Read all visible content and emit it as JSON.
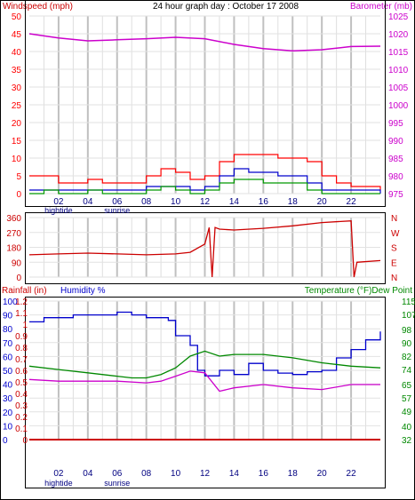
{
  "colors": {
    "wind_avg": "#ff0000",
    "wind_gust": "#0000cc",
    "wind_min": "#009900",
    "barometer": "#cc00cc",
    "direction": "#cc0000",
    "humidity": "#0000cc",
    "temperature": "#008800",
    "dew_point": "#cc00cc",
    "rainfall": "#cc0000",
    "frame": "#000000",
    "grid": "#c8c8c8"
  },
  "chart_data": [
    {
      "type": "line",
      "title": "24 hour graph day : October 17 2008",
      "left_axis_label": "Windspeed (mph)",
      "right_axis_label": "Barometer (mb)",
      "left_ticks": [
        "50",
        "45",
        "40",
        "35",
        "30",
        "25",
        "20",
        "15",
        "10",
        "5",
        "0"
      ],
      "right_ticks": [
        "1025",
        "1020",
        "1015",
        "1010",
        "1005",
        "1000",
        "995",
        "990",
        "985",
        "980",
        "975"
      ],
      "x_ticks": [
        "02",
        "04",
        "06",
        "08",
        "10",
        "12",
        "14",
        "16",
        "18",
        "20",
        "22"
      ],
      "x_sublabels": {
        "02": "hightide",
        "06": "sunrise"
      },
      "ylim_left": [
        0,
        50
      ],
      "ylim_right": [
        975,
        1025
      ],
      "grid": true,
      "series": [
        {
          "color_key": "barometer",
          "axis": "right",
          "x": [
            0,
            2,
            4,
            6,
            8,
            10,
            12,
            14,
            16,
            18,
            20,
            22,
            24
          ],
          "values": [
            1020,
            1018.8,
            1018,
            1018.3,
            1018.6,
            1019,
            1018.6,
            1017,
            1015.8,
            1015.2,
            1015.5,
            1016.4,
            1016.5
          ]
        },
        {
          "color_key": "wind_avg",
          "axis": "left",
          "x": [
            0,
            1,
            2,
            3,
            4,
            5,
            6,
            7,
            8,
            9,
            10,
            11,
            12,
            13,
            14,
            15,
            16,
            17,
            18,
            19,
            20,
            21,
            22,
            23,
            24
          ],
          "values": [
            5,
            5,
            3,
            3,
            4,
            3,
            3,
            3,
            5,
            7,
            6,
            4,
            5,
            9,
            11,
            11,
            11,
            10,
            10,
            9,
            5,
            3,
            2,
            2,
            1
          ]
        },
        {
          "color_key": "wind_gust",
          "axis": "left",
          "x": [
            0,
            1,
            2,
            3,
            4,
            5,
            6,
            7,
            8,
            9,
            10,
            11,
            12,
            13,
            14,
            15,
            16,
            17,
            18,
            19,
            20,
            21,
            22,
            23,
            24
          ],
          "values": [
            1,
            1,
            1,
            1,
            1,
            1,
            1,
            1,
            2,
            2,
            2,
            1,
            2,
            5,
            7,
            6,
            6,
            5,
            5,
            3,
            1,
            1,
            1,
            1,
            0
          ]
        },
        {
          "color_key": "wind_min",
          "axis": "left",
          "x": [
            0,
            1,
            2,
            3,
            4,
            5,
            6,
            7,
            8,
            9,
            10,
            11,
            12,
            13,
            14,
            15,
            16,
            17,
            18,
            19,
            20,
            21,
            22,
            23,
            24
          ],
          "values": [
            0,
            1,
            0,
            0,
            1,
            0,
            0,
            0,
            1,
            2,
            1,
            0,
            1,
            3,
            4,
            4,
            3,
            3,
            3,
            1,
            0,
            0,
            0,
            0,
            0
          ]
        }
      ]
    },
    {
      "type": "line",
      "left_ticks": [
        "360",
        "270",
        "180",
        "90",
        "0"
      ],
      "right_ticks": [
        "N",
        "W",
        "S",
        "E",
        "N"
      ],
      "ylim": [
        0,
        360
      ],
      "grid": true,
      "series": [
        {
          "color_key": "direction",
          "x": [
            0,
            2,
            4,
            6,
            8,
            10,
            11,
            12,
            12.3,
            12.5,
            12.7,
            13,
            14,
            16,
            18,
            20,
            22,
            22.2,
            22.4,
            24
          ],
          "values": [
            135,
            140,
            145,
            140,
            135,
            140,
            150,
            200,
            300,
            0,
            300,
            290,
            285,
            295,
            310,
            330,
            340,
            0,
            90,
            100
          ]
        }
      ]
    },
    {
      "type": "line",
      "left_axis_label_rain": "Rainfall (in)",
      "left_axis_label_humidity": "Humidity %",
      "right_axis_label": "Temperature (°F)Dew Point",
      "humidity_ticks": [
        "100",
        "90",
        "80",
        "70",
        "60",
        "50",
        "40",
        "30",
        "20",
        "10",
        "0"
      ],
      "rain_ticks": [
        "1.2",
        "1.1",
        "1",
        "0.9",
        "0.8",
        "0.7",
        "0.6",
        "0.5",
        "0.4",
        "0.3",
        "0.2",
        "0.1",
        "0"
      ],
      "temp_ticks": [
        "115",
        "107",
        "98",
        "90",
        "82",
        "74",
        "65",
        "57",
        "49",
        "40",
        "32"
      ],
      "x_ticks": [
        "02",
        "04",
        "06",
        "08",
        "10",
        "12",
        "14",
        "16",
        "18",
        "20",
        "22"
      ],
      "x_sublabels": {
        "02": "hightide",
        "06": "sunrise"
      },
      "ylim_humidity": [
        0,
        100
      ],
      "ylim_temp": [
        32,
        115
      ],
      "ylim_rain": [
        0,
        1.2
      ],
      "grid": true,
      "series": [
        {
          "color_key": "humidity",
          "axis": "humidity",
          "x": [
            0,
            0.8,
            1,
            2.5,
            3,
            5,
            6,
            7,
            8,
            9.5,
            10,
            11,
            11.5,
            12,
            13,
            14,
            15,
            16,
            17,
            18,
            19,
            20,
            21,
            22,
            23,
            24
          ],
          "values": [
            85,
            85,
            88,
            88,
            90,
            90,
            92,
            90,
            88,
            86,
            75,
            68,
            50,
            46,
            50,
            47,
            55,
            50,
            48,
            47,
            49,
            50,
            59,
            65,
            72,
            78
          ]
        },
        {
          "color_key": "temperature",
          "axis": "temp",
          "x": [
            0,
            2,
            4,
            6,
            7,
            8,
            9,
            10,
            11,
            12,
            13,
            14,
            16,
            18,
            20,
            22,
            24
          ],
          "values": [
            76,
            74,
            72,
            70,
            69,
            69,
            71,
            75,
            82,
            85,
            82,
            83,
            83,
            81,
            78,
            76,
            75
          ]
        },
        {
          "color_key": "dew_point",
          "axis": "temp",
          "x": [
            0,
            2,
            4,
            6,
            8,
            9,
            10,
            11,
            12,
            13,
            14,
            16,
            18,
            20,
            22,
            24
          ],
          "values": [
            68,
            67,
            67,
            67,
            66,
            67,
            70,
            73,
            72,
            61,
            63,
            65,
            63,
            62,
            65,
            65
          ]
        },
        {
          "color_key": "rainfall",
          "axis": "rain",
          "x": [
            0,
            24
          ],
          "values": [
            0,
            0
          ]
        }
      ]
    }
  ]
}
